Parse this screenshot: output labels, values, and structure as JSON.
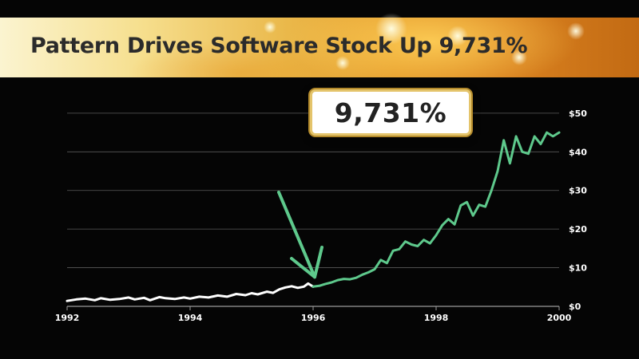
{
  "banner": {
    "title": "Pattern Drives Software Stock Up 9,731%"
  },
  "callout": {
    "text": "9,731%"
  },
  "colors": {
    "background": "#050505",
    "pre_pattern_line": "#ffffff",
    "post_pattern_line": "#5ec98c",
    "arrow": "#5ec98c",
    "gridline": "#5a5a5a"
  },
  "chart_data": {
    "type": "line",
    "title": "Pattern Drives Software Stock Up 9,731%",
    "xlabel": "",
    "ylabel": "",
    "xlim": [
      1992,
      2000
    ],
    "ylim": [
      0,
      57
    ],
    "x_ticks": [
      {
        "value": 1992,
        "label": "1992"
      },
      {
        "value": 1994,
        "label": "1994"
      },
      {
        "value": 1996,
        "label": "1996"
      },
      {
        "value": 1998,
        "label": "1998"
      },
      {
        "value": 2000,
        "label": "2000"
      }
    ],
    "y_ticks": [
      {
        "value": 0,
        "label": "$0"
      },
      {
        "value": 10,
        "label": "$10"
      },
      {
        "value": 20,
        "label": "$20"
      },
      {
        "value": 30,
        "label": "$30"
      },
      {
        "value": 40,
        "label": "$40"
      },
      {
        "value": 50,
        "label": "$50"
      }
    ],
    "grid": "horizontal",
    "y_axis_position": "right",
    "series": [
      {
        "color": "#ffffff",
        "x": [
          1992.0,
          1992.15,
          1992.3,
          1992.45,
          1992.55,
          1992.7,
          1992.85,
          1993.0,
          1993.1,
          1993.25,
          1993.35,
          1993.5,
          1993.6,
          1993.75,
          1993.9,
          1994.0,
          1994.15,
          1994.3,
          1994.45,
          1994.6,
          1994.75,
          1994.9,
          1995.0,
          1995.1,
          1995.25,
          1995.35,
          1995.45,
          1995.55,
          1995.65,
          1995.75,
          1995.85,
          1995.92,
          1996.0
        ],
        "y": [
          1.4,
          1.8,
          2.0,
          1.6,
          2.1,
          1.7,
          1.9,
          2.3,
          1.8,
          2.2,
          1.6,
          2.4,
          2.1,
          1.9,
          2.3,
          2.0,
          2.5,
          2.3,
          2.8,
          2.5,
          3.2,
          2.9,
          3.4,
          3.1,
          3.8,
          3.5,
          4.4,
          4.9,
          5.2,
          4.8,
          5.1,
          5.9,
          5.1
        ]
      },
      {
        "color": "#5ec98c",
        "x": [
          1996.0,
          1996.1,
          1996.2,
          1996.3,
          1996.4,
          1996.5,
          1996.6,
          1996.7,
          1996.8,
          1996.9,
          1997.0,
          1997.1,
          1997.2,
          1997.3,
          1997.4,
          1997.5,
          1997.6,
          1997.7,
          1997.8,
          1997.9,
          1998.0,
          1998.1,
          1998.2,
          1998.3,
          1998.4,
          1998.5,
          1998.6,
          1998.7,
          1998.8,
          1998.9,
          1999.0,
          1999.1,
          1999.2,
          1999.3,
          1999.4,
          1999.5,
          1999.6,
          1999.7,
          1999.8,
          1999.9,
          2000.0
        ],
        "y": [
          5.1,
          5.3,
          5.8,
          6.2,
          6.8,
          7.1,
          7.0,
          7.4,
          8.2,
          8.8,
          9.6,
          12.0,
          11.2,
          14.4,
          14.8,
          16.8,
          16.0,
          15.6,
          17.2,
          16.3,
          18.4,
          21.0,
          22.6,
          21.2,
          26.1,
          27.0,
          23.5,
          26.3,
          25.8,
          30.0,
          35.0,
          43.0,
          37.0,
          44.0,
          40.0,
          39.5,
          44.0,
          42.0,
          45.0,
          44.0,
          45.0
        ]
      }
    ],
    "annotations": [
      {
        "type": "arrow",
        "points_to": {
          "x": 1996.0,
          "y": 8.0
        }
      },
      {
        "type": "callout",
        "text": "9,731%"
      }
    ]
  }
}
